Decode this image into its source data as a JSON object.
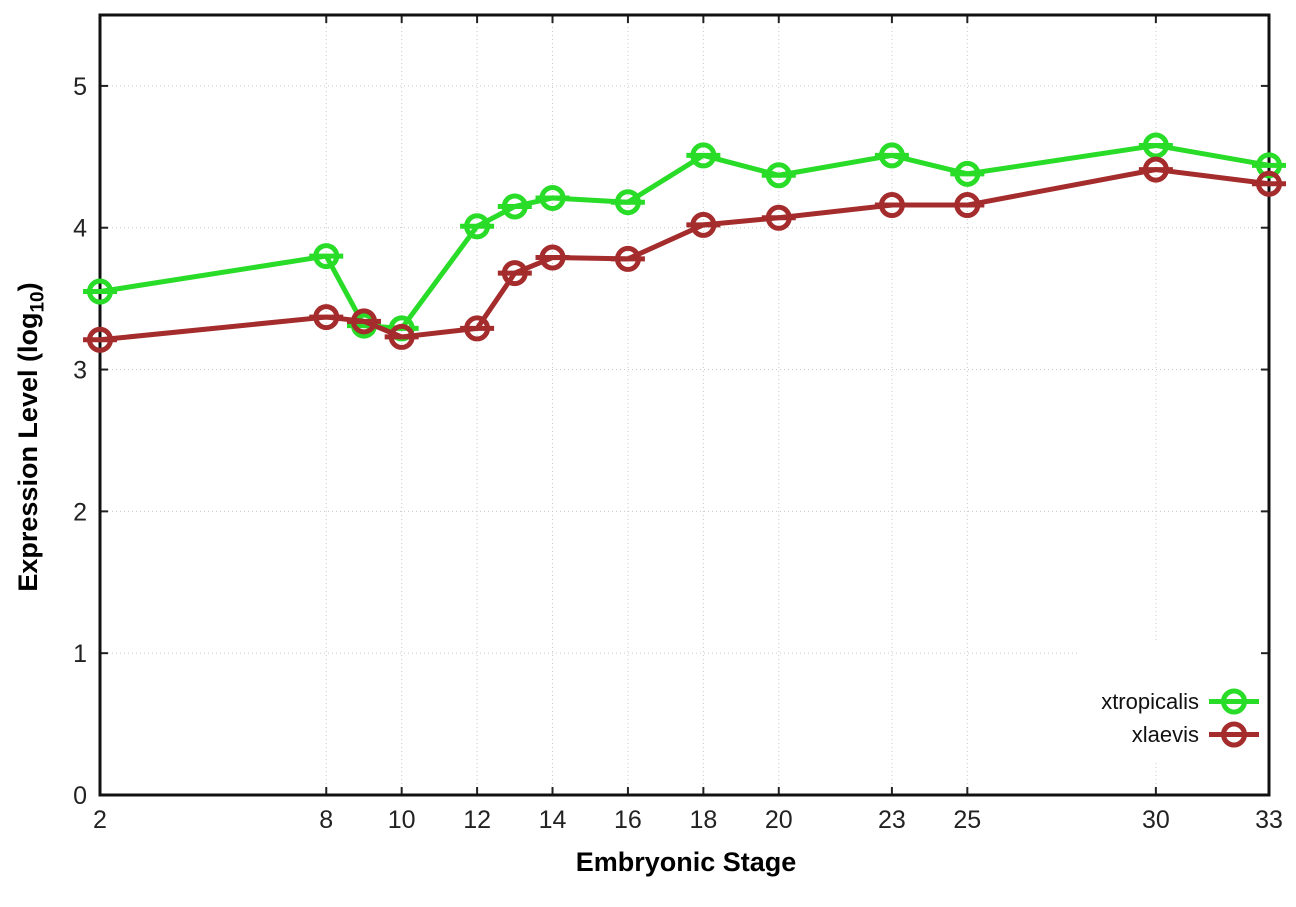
{
  "chart_data": {
    "type": "line",
    "title": "",
    "xlabel": "Embryonic Stage",
    "ylabel": "Expression Level (log10)",
    "ylabel_parts": {
      "main": "Expression Level (log",
      "sub": "10",
      "close": ")"
    },
    "xlim": [
      2,
      33
    ],
    "ylim": [
      0,
      5.5
    ],
    "x_ticks": [
      2,
      8,
      10,
      12,
      14,
      16,
      18,
      20,
      23,
      25,
      30,
      33
    ],
    "y_ticks": [
      0,
      1,
      2,
      3,
      4,
      5
    ],
    "grid": true,
    "legend_position": "bottom-right",
    "x": [
      2,
      8,
      9,
      10,
      12,
      13,
      14,
      16,
      18,
      20,
      23,
      25,
      30,
      33
    ],
    "series": [
      {
        "name": "xtropicalis",
        "color": "#28DC28",
        "values": [
          3.55,
          3.8,
          3.31,
          3.29,
          4.01,
          4.15,
          4.21,
          4.18,
          4.51,
          4.37,
          4.51,
          4.38,
          4.58,
          4.44
        ]
      },
      {
        "name": "xlaevis",
        "color": "#A52C2C",
        "values": [
          3.21,
          3.37,
          3.34,
          3.23,
          3.29,
          3.68,
          3.79,
          3.78,
          4.02,
          4.07,
          4.16,
          4.16,
          4.41,
          4.31
        ]
      }
    ],
    "colors": {
      "grid": "#c9c9c9",
      "axis": "#111111",
      "tick_text": "#222222",
      "label_text": "#000000",
      "background": "#ffffff"
    }
  }
}
